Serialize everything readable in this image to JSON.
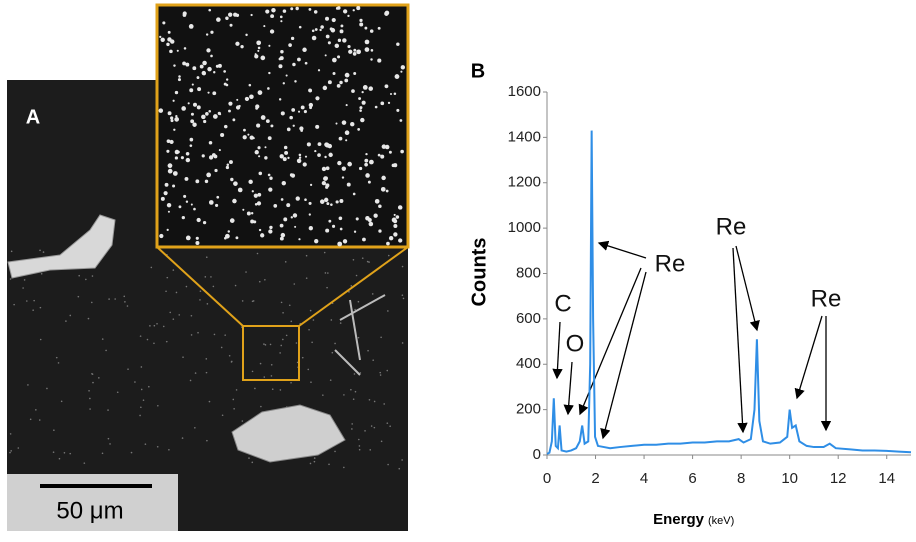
{
  "panel_a": {
    "label": "A",
    "scale_bar": "50 μm"
  },
  "chart_data": {
    "type": "line",
    "panel_label": "B",
    "xlabel": "Energy",
    "xlabel_unit": "(keV)",
    "ylabel": "Counts",
    "x": [
      0,
      0.1,
      0.2,
      0.28,
      0.36,
      0.45,
      0.52,
      0.6,
      0.8,
      1.0,
      1.2,
      1.35,
      1.45,
      1.55,
      1.7,
      1.78,
      1.84,
      1.9,
      1.98,
      2.1,
      2.35,
      2.6,
      3,
      3.5,
      4,
      4.5,
      5,
      5.5,
      6,
      6.5,
      7,
      7.5,
      7.9,
      8.1,
      8.4,
      8.55,
      8.65,
      8.75,
      8.9,
      9.2,
      9.6,
      9.9,
      10.0,
      10.1,
      10.25,
      10.4,
      10.7,
      11,
      11.4,
      11.65,
      11.9,
      12.5,
      13,
      13.5,
      14,
      14.5,
      15
    ],
    "series": [
      {
        "color": "#2f8ee6",
        "values": [
          5,
          10,
          60,
          250,
          40,
          30,
          130,
          20,
          15,
          20,
          30,
          60,
          130,
          50,
          60,
          400,
          1430,
          600,
          80,
          40,
          35,
          30,
          35,
          40,
          45,
          45,
          50,
          50,
          55,
          55,
          60,
          60,
          70,
          55,
          70,
          200,
          510,
          150,
          60,
          50,
          55,
          80,
          200,
          120,
          130,
          60,
          40,
          35,
          35,
          50,
          30,
          25,
          20,
          20,
          18,
          15,
          12
        ]
      }
    ],
    "xlim": [
      0,
      15
    ],
    "xticks": [
      0,
      2,
      4,
      6,
      8,
      10,
      12,
      14
    ],
    "ylim": [
      0,
      1600
    ],
    "yticks": [
      0,
      200,
      400,
      600,
      800,
      1000,
      1200,
      1400,
      1600
    ],
    "annotations": [
      "C",
      "O",
      "Re",
      "Re",
      "Re"
    ]
  }
}
